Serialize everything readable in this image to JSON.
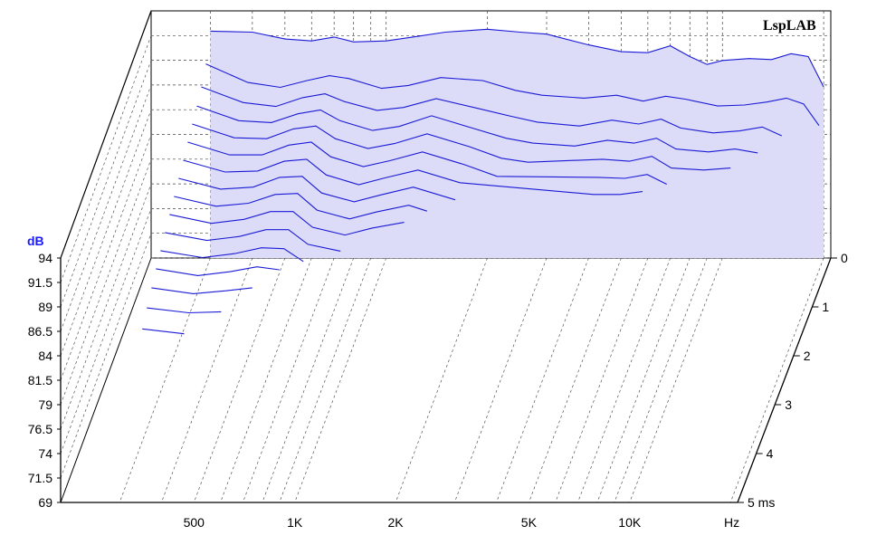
{
  "logo": "LspLAB",
  "chart_data": {
    "type": "waterfall",
    "ylabel": "dB",
    "y_ticks": [
      "94",
      "91.5",
      "89",
      "86.5",
      "84",
      "81.5",
      "79",
      "76.5",
      "74",
      "71.5",
      "69"
    ],
    "ylim": [
      69,
      94
    ],
    "x_ticks": [
      "500",
      "1K",
      "2K",
      "5K",
      "10K"
    ],
    "x_unit": "Hz",
    "x_scale": "log",
    "x_tick_values": [
      500,
      1000,
      2000,
      5000,
      10000
    ],
    "z_ticks": [
      "0",
      "1",
      "2",
      "3",
      "4",
      "5 ms"
    ],
    "zlim": [
      0,
      5
    ],
    "grid": true,
    "fill_color": "#dcdcf8",
    "line_color": "#1a1ad6",
    "slices": [
      {
        "t_ms": 0.0,
        "points": [
          [
            300,
            92.2
          ],
          [
            400,
            92.1
          ],
          [
            500,
            91.4
          ],
          [
            600,
            91.2
          ],
          [
            700,
            91.6
          ],
          [
            800,
            91.1
          ],
          [
            1000,
            91.2
          ],
          [
            1200,
            91.6
          ],
          [
            1500,
            92.1
          ],
          [
            2000,
            92.4
          ],
          [
            2500,
            92.1
          ],
          [
            3000,
            91.9
          ],
          [
            4000,
            90.8
          ],
          [
            5000,
            90.1
          ],
          [
            6000,
            90.0
          ],
          [
            7000,
            90.7
          ],
          [
            8000,
            89.6
          ],
          [
            9000,
            88.8
          ],
          [
            10000,
            89.2
          ],
          [
            12000,
            89.4
          ],
          [
            14000,
            89.3
          ],
          [
            16000,
            89.9
          ],
          [
            18000,
            89.6
          ],
          [
            20000,
            86.5
          ]
        ]
      },
      {
        "t_ms": 0.25,
        "points": [
          [
            300,
            90.1
          ],
          [
            400,
            88.2
          ],
          [
            500,
            87.7
          ],
          [
            600,
            88.4
          ],
          [
            700,
            88.9
          ],
          [
            800,
            88.6
          ],
          [
            1000,
            87.6
          ],
          [
            1200,
            87.9
          ],
          [
            1500,
            88.7
          ],
          [
            2000,
            88.4
          ],
          [
            2500,
            87.4
          ],
          [
            3000,
            86.9
          ],
          [
            4000,
            86.6
          ],
          [
            5000,
            86.9
          ],
          [
            6000,
            86.3
          ],
          [
            7000,
            86.8
          ],
          [
            8000,
            86.5
          ],
          [
            10000,
            85.8
          ],
          [
            12000,
            85.9
          ],
          [
            14000,
            86.2
          ],
          [
            16000,
            86.6
          ],
          [
            18000,
            86.0
          ],
          [
            20000,
            83.8
          ]
        ]
      },
      {
        "t_ms": 0.5,
        "points": [
          [
            300,
            89.0
          ],
          [
            400,
            87.4
          ],
          [
            500,
            87.0
          ],
          [
            600,
            87.9
          ],
          [
            700,
            88.3
          ],
          [
            800,
            87.5
          ],
          [
            1000,
            86.6
          ],
          [
            1200,
            86.9
          ],
          [
            1500,
            87.8
          ],
          [
            2000,
            86.8
          ],
          [
            2500,
            86.0
          ],
          [
            3000,
            85.4
          ],
          [
            4000,
            85.0
          ],
          [
            5000,
            85.6
          ],
          [
            6000,
            85.2
          ],
          [
            7000,
            85.7
          ],
          [
            8000,
            84.8
          ],
          [
            10000,
            84.3
          ],
          [
            12000,
            84.5
          ],
          [
            14000,
            84.9
          ],
          [
            16000,
            84.0
          ]
        ]
      },
      {
        "t_ms": 0.75,
        "points": [
          [
            300,
            88.3
          ],
          [
            400,
            86.8
          ],
          [
            500,
            86.6
          ],
          [
            600,
            87.5
          ],
          [
            700,
            87.9
          ],
          [
            800,
            86.8
          ],
          [
            1000,
            85.8
          ],
          [
            1200,
            86.2
          ],
          [
            1500,
            87.3
          ],
          [
            2000,
            86.0
          ],
          [
            2500,
            85.0
          ],
          [
            3000,
            84.5
          ],
          [
            4000,
            84.2
          ],
          [
            5000,
            84.8
          ],
          [
            6000,
            84.5
          ],
          [
            7000,
            85.0
          ],
          [
            8000,
            83.9
          ],
          [
            10000,
            83.6
          ],
          [
            12000,
            83.9
          ],
          [
            14000,
            83.5
          ]
        ]
      },
      {
        "t_ms": 1.0,
        "points": [
          [
            300,
            87.7
          ],
          [
            400,
            86.3
          ],
          [
            500,
            86.2
          ],
          [
            600,
            87.2
          ],
          [
            700,
            87.5
          ],
          [
            800,
            86.2
          ],
          [
            1000,
            85.2
          ],
          [
            1200,
            85.7
          ],
          [
            1500,
            86.7
          ],
          [
            2000,
            85.4
          ],
          [
            2500,
            84.2
          ],
          [
            3000,
            83.8
          ],
          [
            5000,
            84.1
          ],
          [
            6000,
            83.9
          ],
          [
            7000,
            84.4
          ],
          [
            8000,
            83.2
          ],
          [
            10000,
            83.0
          ],
          [
            12000,
            83.2
          ]
        ]
      },
      {
        "t_ms": 1.25,
        "points": [
          [
            300,
            87.1
          ],
          [
            400,
            85.8
          ],
          [
            500,
            85.8
          ],
          [
            600,
            86.8
          ],
          [
            700,
            87.1
          ],
          [
            800,
            85.6
          ],
          [
            1000,
            84.6
          ],
          [
            1200,
            85.2
          ],
          [
            1500,
            86.1
          ],
          [
            2000,
            84.8
          ],
          [
            2500,
            83.6
          ],
          [
            5000,
            83.5
          ],
          [
            6000,
            83.4
          ],
          [
            7000,
            83.8
          ],
          [
            8000,
            82.8
          ]
        ]
      },
      {
        "t_ms": 1.5,
        "points": [
          [
            300,
            86.5
          ],
          [
            400,
            85.3
          ],
          [
            500,
            85.4
          ],
          [
            600,
            86.4
          ],
          [
            700,
            86.6
          ],
          [
            800,
            85.0
          ],
          [
            1000,
            84.0
          ],
          [
            1200,
            84.7
          ],
          [
            1500,
            85.5
          ],
          [
            2000,
            84.2
          ],
          [
            5000,
            83.0
          ],
          [
            6000,
            83.0
          ],
          [
            7000,
            83.3
          ]
        ]
      },
      {
        "t_ms": 1.75,
        "points": [
          [
            300,
            85.9
          ],
          [
            400,
            84.8
          ],
          [
            500,
            85.0
          ],
          [
            600,
            86.0
          ],
          [
            700,
            86.1
          ],
          [
            800,
            84.4
          ],
          [
            1000,
            83.5
          ],
          [
            1200,
            84.2
          ],
          [
            1500,
            85.0
          ],
          [
            2000,
            83.7
          ]
        ]
      },
      {
        "t_ms": 2.0,
        "points": [
          [
            300,
            85.3
          ],
          [
            400,
            84.3
          ],
          [
            500,
            84.6
          ],
          [
            600,
            85.5
          ],
          [
            700,
            85.6
          ],
          [
            800,
            83.9
          ],
          [
            1000,
            83.0
          ],
          [
            1200,
            83.7
          ],
          [
            1500,
            84.4
          ],
          [
            1700,
            83.8
          ]
        ]
      },
      {
        "t_ms": 2.25,
        "points": [
          [
            300,
            84.7
          ],
          [
            400,
            83.8
          ],
          [
            500,
            84.2
          ],
          [
            600,
            85.0
          ],
          [
            700,
            85.0
          ],
          [
            800,
            83.4
          ],
          [
            1000,
            82.6
          ],
          [
            1200,
            83.3
          ],
          [
            1500,
            83.9
          ]
        ]
      },
      {
        "t_ms": 2.5,
        "points": [
          [
            300,
            84.1
          ],
          [
            400,
            83.3
          ],
          [
            500,
            83.7
          ],
          [
            600,
            84.4
          ],
          [
            700,
            84.4
          ],
          [
            800,
            82.9
          ],
          [
            1000,
            82.2
          ]
        ]
      },
      {
        "t_ms": 2.75,
        "points": [
          [
            300,
            83.5
          ],
          [
            400,
            82.8
          ],
          [
            500,
            83.2
          ],
          [
            600,
            83.8
          ],
          [
            700,
            83.7
          ],
          [
            800,
            82.4
          ]
        ]
      },
      {
        "t_ms": 3.0,
        "points": [
          [
            300,
            82.9
          ],
          [
            400,
            82.2
          ],
          [
            500,
            82.6
          ],
          [
            600,
            83.1
          ],
          [
            700,
            82.8
          ]
        ]
      },
      {
        "t_ms": 3.25,
        "points": [
          [
            300,
            82.2
          ],
          [
            400,
            81.6
          ],
          [
            500,
            81.9
          ],
          [
            600,
            82.2
          ]
        ]
      },
      {
        "t_ms": 3.5,
        "points": [
          [
            300,
            81.4
          ],
          [
            400,
            80.9
          ],
          [
            500,
            81.0
          ]
        ]
      },
      {
        "t_ms": 3.75,
        "points": [
          [
            300,
            80.5
          ],
          [
            400,
            80.0
          ]
        ]
      }
    ]
  }
}
